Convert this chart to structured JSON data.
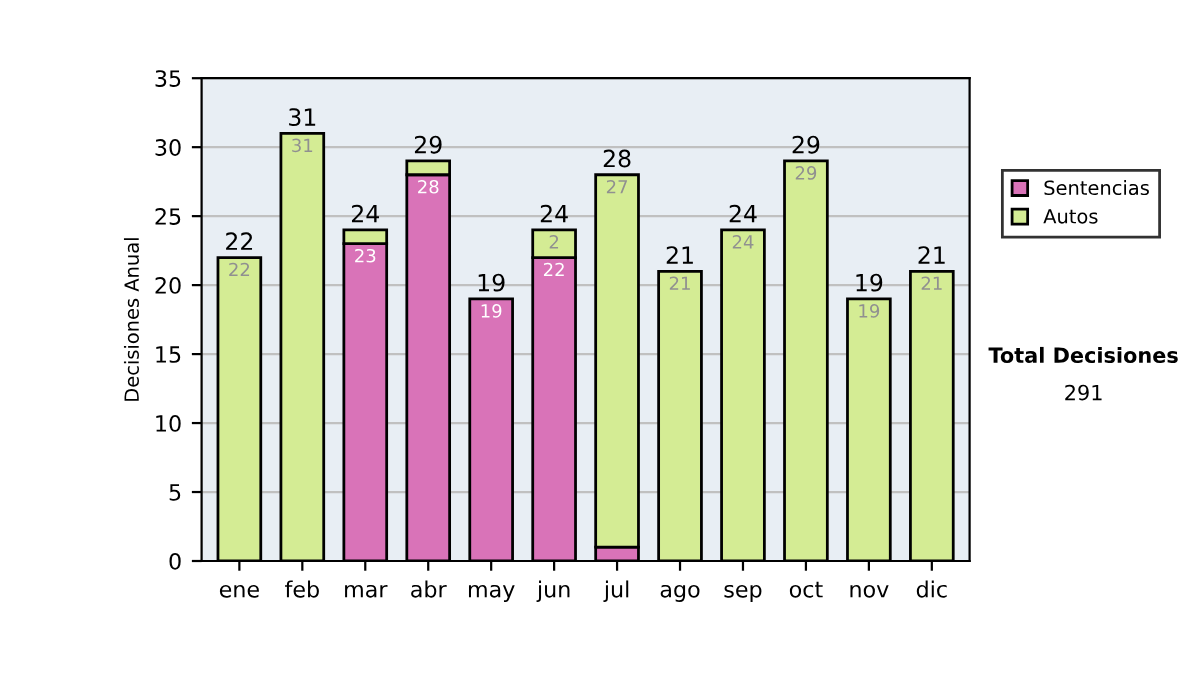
{
  "chart_data": {
    "type": "bar",
    "stacked": true,
    "ylabel": "Decisiones Anual",
    "categories": [
      "ene",
      "feb",
      "mar",
      "abr",
      "may",
      "jun",
      "jul",
      "ago",
      "sep",
      "oct",
      "nov",
      "dic"
    ],
    "series": [
      {
        "name": "Sentencias",
        "color": "#d973b8",
        "values": [
          null,
          null,
          23,
          28,
          19,
          22,
          1,
          null,
          null,
          null,
          null,
          null
        ],
        "value_labels": [
          null,
          null,
          "23",
          "28",
          "19",
          "22",
          null,
          null,
          null,
          null,
          null,
          null
        ]
      },
      {
        "name": "Autos",
        "color": "#d4ec94",
        "values": [
          22,
          31,
          1,
          1,
          null,
          2,
          27,
          21,
          24,
          29,
          19,
          21
        ],
        "value_labels": [
          "22",
          "31",
          null,
          null,
          null,
          "2",
          "27",
          "21",
          "24",
          "29",
          "19",
          "21"
        ]
      }
    ],
    "totals": [
      "22",
      "31",
      "24",
      "29",
      "19",
      "24",
      "28",
      "21",
      "24",
      "29",
      "19",
      "21"
    ],
    "ylim": [
      0,
      35
    ],
    "yticks": [
      0,
      5,
      10,
      15,
      20,
      25,
      30,
      35
    ],
    "grid": "y",
    "legend": "right",
    "annotations": [
      "Total Decisiones",
      "291"
    ]
  }
}
